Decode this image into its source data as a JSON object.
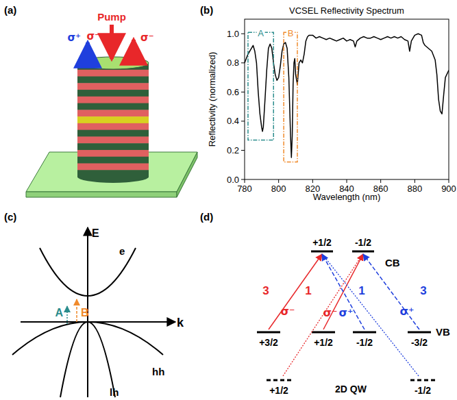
{
  "panel_labels": [
    "(a)",
    "(b)",
    "(c)",
    "(d)"
  ],
  "panel_a": {
    "pump": "Pump",
    "pump_polarization": "σ⁻",
    "out_left": "σ⁺",
    "out_right": "σ⁻"
  },
  "chart_data": {
    "type": "line",
    "title": "VCSEL Reflectivity Spectrum",
    "x_label": "Wavelength (nm)",
    "y_label": "Reflectivity (normalized)",
    "color": "#000000",
    "x": [
      780,
      782,
      784,
      785,
      786,
      787,
      788,
      789,
      790,
      790.5,
      791,
      792,
      793,
      794,
      795,
      796,
      797,
      798,
      799,
      800,
      801,
      802,
      803,
      804,
      805,
      806,
      807,
      807.5,
      808,
      808.5,
      809,
      809.5,
      810,
      811,
      812,
      813,
      814,
      815,
      816,
      817,
      818,
      820,
      822,
      824,
      826,
      828,
      830,
      832,
      834,
      836,
      838,
      840,
      842,
      844,
      845,
      846,
      848,
      850,
      852,
      854,
      856,
      858,
      860,
      862,
      864,
      866,
      868,
      870,
      872,
      874,
      876,
      877,
      878,
      880,
      882,
      884,
      885,
      886,
      888,
      890,
      892,
      893,
      894,
      895,
      896,
      897,
      898,
      900
    ],
    "values": [
      0.8,
      0.86,
      0.9,
      0.92,
      0.88,
      0.8,
      0.6,
      0.45,
      0.36,
      0.33,
      0.36,
      0.55,
      0.75,
      0.9,
      0.93,
      0.9,
      0.8,
      0.72,
      0.68,
      0.7,
      0.78,
      0.88,
      0.93,
      0.94,
      0.9,
      0.7,
      0.3,
      0.15,
      0.3,
      0.65,
      0.8,
      0.83,
      0.72,
      0.65,
      0.8,
      0.82,
      0.8,
      0.86,
      0.95,
      0.98,
      0.99,
      0.99,
      0.97,
      0.98,
      0.97,
      0.96,
      0.97,
      0.96,
      0.95,
      0.96,
      0.97,
      0.95,
      0.96,
      0.95,
      0.91,
      0.95,
      0.97,
      0.98,
      0.97,
      0.97,
      0.98,
      0.97,
      0.96,
      0.97,
      0.98,
      0.97,
      0.98,
      0.97,
      0.98,
      0.96,
      0.95,
      0.88,
      0.95,
      0.99,
      1.0,
      0.99,
      0.94,
      0.92,
      0.9,
      0.88,
      0.82,
      0.72,
      0.55,
      0.47,
      0.45,
      0.58,
      0.7,
      0.75
    ],
    "xlim": [
      780,
      900
    ],
    "ylim": [
      0,
      1.1
    ],
    "xticks": [
      780,
      800,
      820,
      840,
      860,
      880,
      900
    ],
    "yticks": [
      {
        "value": 0,
        "label": "0.0"
      },
      {
        "value": 0.2,
        "label": "0.2"
      },
      {
        "value": 0.4,
        "label": "0.4"
      },
      {
        "value": 0.6,
        "label": "0.6"
      },
      {
        "value": 0.8,
        "label": "0.8"
      },
      {
        "value": 1,
        "label": "1.0"
      }
    ],
    "annotations": [
      {
        "label": "A",
        "color": "#2a8c8c",
        "x": [
          782,
          797
        ],
        "y": [
          0.27,
          1.01
        ]
      },
      {
        "label": "B",
        "color": "#f08a2b",
        "x": [
          803,
          811
        ],
        "y": [
          0.12,
          1.01
        ]
      }
    ]
  },
  "panel_c": {
    "axis_e": "E",
    "axis_k": "k",
    "bands": [
      "e",
      "hh",
      "lh"
    ],
    "transitions": [
      {
        "label": "A",
        "color": "#2a8c8c"
      },
      {
        "label": "B",
        "color": "#f08a2b"
      }
    ]
  },
  "panel_d": {
    "cb_label": "CB",
    "vb_label": "VB",
    "qw_label": "2D QW",
    "cb_levels": [
      "+1/2",
      "-1/2"
    ],
    "vb_levels": [
      "+3/2",
      "+1/2",
      "-1/2",
      "-3/2"
    ],
    "qw_levels": [
      "+1/2",
      "-1/2"
    ],
    "transitions": [
      {
        "strength": 3,
        "polarization": "σ⁻",
        "color": "#e8272a"
      },
      {
        "strength": 1,
        "polarization": "σ⁻",
        "color": "#e8272a"
      },
      {
        "strength": 1,
        "polarization": "σ⁺",
        "color": "#1f3fdd"
      },
      {
        "strength": 3,
        "polarization": "σ⁺",
        "color": "#1f3fdd"
      }
    ]
  }
}
